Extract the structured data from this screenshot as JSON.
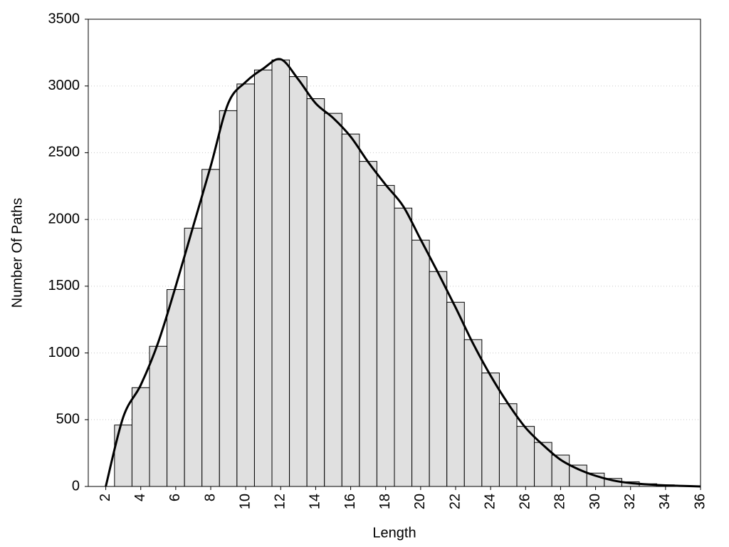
{
  "chart_data": {
    "type": "histogram",
    "xlabel": "Length",
    "ylabel": "Number Of Paths",
    "bins": [
      2.5,
      3.5,
      4.5,
      5.5,
      6.5,
      7.5,
      8.5,
      9.5,
      10.5,
      11.5,
      12.5,
      13.5,
      14.5,
      15.5,
      16.5,
      17.5,
      18.5,
      19.5,
      20.5,
      21.5,
      22.5,
      23.5,
      24.5,
      25.5,
      26.5,
      27.5,
      28.5,
      29.5,
      30.5,
      31.5,
      32.5,
      33.5,
      34.5,
      35.5
    ],
    "values": [
      460,
      740,
      1050,
      1475,
      1935,
      2375,
      2815,
      3015,
      3120,
      3195,
      3070,
      2905,
      2795,
      2640,
      2435,
      2255,
      2085,
      1845,
      1610,
      1380,
      1100,
      850,
      620,
      450,
      330,
      235,
      160,
      100,
      60,
      35,
      20,
      12,
      6
    ],
    "color": "#e0e0e0",
    "line": {
      "x": [
        2,
        3,
        4,
        5,
        6,
        7,
        8,
        9,
        10,
        11,
        12,
        13,
        14,
        15,
        16,
        17,
        18,
        19,
        20,
        21,
        22,
        23,
        24,
        25,
        26,
        27,
        28,
        29,
        30,
        31,
        32,
        33,
        34,
        35,
        36
      ],
      "values": [
        0,
        520,
        760,
        1080,
        1500,
        1950,
        2400,
        2870,
        3030,
        3130,
        3200,
        3050,
        2870,
        2760,
        2620,
        2430,
        2260,
        2100,
        1850,
        1600,
        1340,
        1070,
        830,
        620,
        440,
        310,
        200,
        130,
        80,
        45,
        25,
        15,
        8,
        4,
        0
      ],
      "color": "#000000"
    },
    "xlim": [
      1,
      36
    ],
    "ylim": [
      0,
      3500
    ],
    "xticks": [
      2,
      4,
      6,
      8,
      10,
      12,
      14,
      16,
      18,
      20,
      22,
      24,
      26,
      28,
      30,
      32,
      34,
      36
    ],
    "yticks": [
      0,
      500,
      1000,
      1500,
      2000,
      2500,
      3000,
      3500
    ],
    "grid": true
  }
}
